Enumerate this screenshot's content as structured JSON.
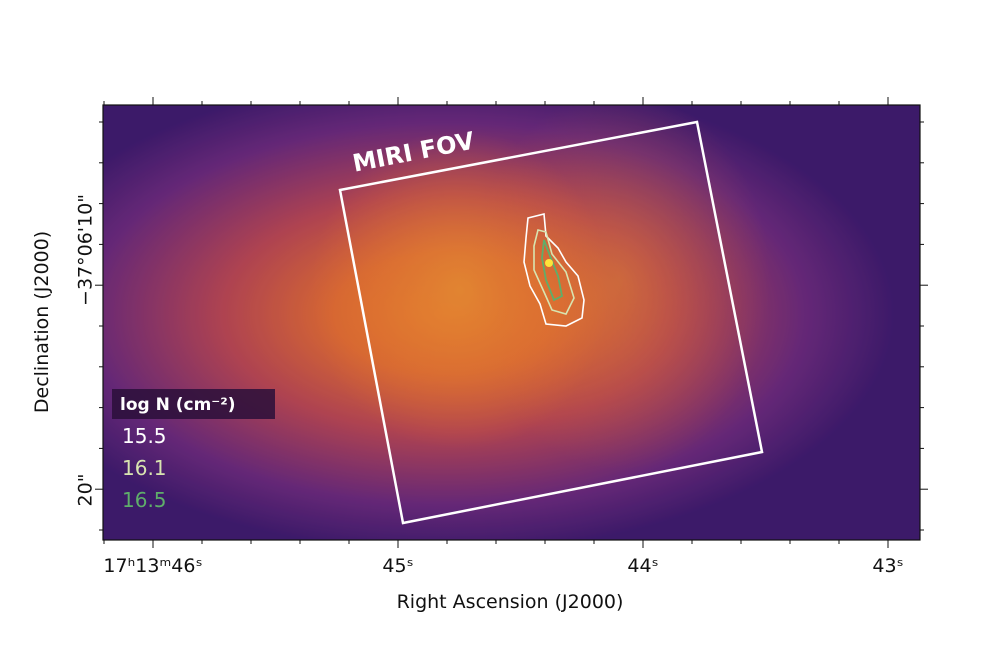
{
  "figure": {
    "annotation": "MIRI FOV",
    "x_axis": {
      "label": "Right Ascension (J2000)",
      "ticks": [
        "17ʰ13ᵐ46ˢ",
        "45ˢ",
        "44ˢ",
        "43ˢ"
      ]
    },
    "y_axis": {
      "label": "Declination (J2000)",
      "ticks": [
        "−37°06'10\"",
        "20\""
      ]
    },
    "legend": {
      "title": "log N (cm⁻²)",
      "entries": [
        {
          "label": "15.5",
          "color": "#ffffff"
        },
        {
          "label": "16.1",
          "color": "#d8e4b0"
        },
        {
          "label": "16.5",
          "color": "#5fae6a"
        }
      ]
    }
  }
}
